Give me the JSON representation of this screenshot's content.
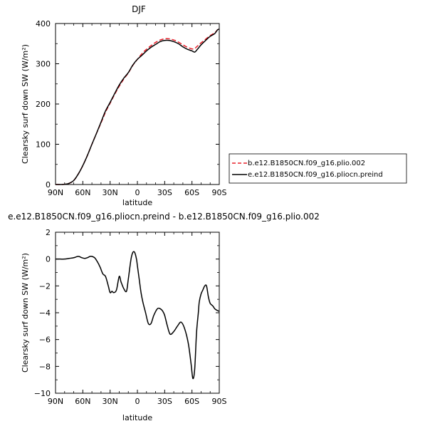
{
  "chart_data": [
    {
      "type": "line",
      "title": "DJF",
      "xlabel": "latitude",
      "ylabel": "Clearsky surf down SW (W/m²)",
      "xlim": [
        90,
        -90
      ],
      "ylim": [
        0,
        400
      ],
      "xticks": [
        90,
        60,
        30,
        0,
        -30,
        -60,
        -90
      ],
      "xticklabels": [
        "90N",
        "60N",
        "30N",
        "0",
        "30S",
        "60S",
        "90S"
      ],
      "yticks": [
        0,
        100,
        200,
        300,
        400
      ],
      "yticklabels": [
        "0",
        "100",
        "200",
        "300",
        "400"
      ],
      "legend_position": "right",
      "series": [
        {
          "name": "b.e12.B1850CN.f09_g16.plio.002",
          "color": "#e8202a",
          "dash": "dashed",
          "x": [
            90,
            85,
            80,
            75,
            70,
            65,
            60,
            55,
            50,
            45,
            40,
            35,
            30,
            25,
            20,
            15,
            10,
            5,
            0,
            -5,
            -10,
            -15,
            -20,
            -25,
            -30,
            -35,
            -40,
            -45,
            -50,
            -55,
            -60,
            -63,
            -66,
            -70,
            -75,
            -80,
            -85,
            -88,
            -90
          ],
          "y": [
            0,
            0,
            0.5,
            3,
            10,
            26,
            47,
            72,
            100,
            127,
            153,
            180,
            202,
            224,
            244,
            262,
            277,
            296,
            311,
            325,
            336,
            345,
            353,
            359,
            362,
            362,
            359,
            354,
            347,
            341,
            337,
            338,
            344,
            352,
            361,
            370,
            377,
            384,
            387
          ]
        },
        {
          "name": "e.e12.B1850CN.f09_g16.pliocn.preind",
          "color": "#000000",
          "dash": "solid",
          "x": [
            90,
            85,
            80,
            75,
            70,
            65,
            60,
            55,
            50,
            45,
            40,
            35,
            30,
            25,
            20,
            15,
            10,
            5,
            0,
            -5,
            -10,
            -15,
            -20,
            -25,
            -30,
            -35,
            -40,
            -45,
            -50,
            -55,
            -60,
            -63,
            -66,
            -70,
            -75,
            -80,
            -85,
            -88,
            -90
          ],
          "y": [
            0,
            0,
            0.5,
            3,
            10,
            26,
            47,
            72,
            100,
            127,
            155,
            183,
            204,
            226,
            247,
            264,
            278,
            297,
            311,
            321,
            332,
            341,
            348,
            355,
            358,
            358,
            355,
            350,
            342,
            336,
            332,
            329,
            336,
            347,
            358,
            368,
            375,
            384,
            386
          ]
        }
      ]
    },
    {
      "type": "line",
      "title": "e.e12.B1850CN.f09_g16.pliocn.preind - b.e12.B1850CN.f09_g16.plio.002",
      "xlabel": "latitude",
      "ylabel": "Clearsky surf down SW (W/m²)",
      "xlim": [
        90,
        -90
      ],
      "ylim": [
        -10,
        2
      ],
      "xticks": [
        90,
        60,
        30,
        0,
        -30,
        -60,
        -90
      ],
      "xticklabels": [
        "90N",
        "60N",
        "30N",
        "0",
        "30S",
        "60S",
        "90S"
      ],
      "yticks": [
        2,
        0,
        -2,
        -4,
        -6,
        -8,
        -10
      ],
      "yticklabels": [
        "2",
        "0",
        "−2",
        "−4",
        "−6",
        "−8",
        "−10"
      ],
      "series": [
        {
          "name": "",
          "color": "#000000",
          "dash": "solid",
          "x": [
            90,
            85,
            80,
            75,
            70,
            65,
            61,
            58,
            55,
            52,
            50,
            47,
            44,
            41,
            38,
            35,
            32,
            30,
            28,
            26,
            23,
            20,
            18,
            15,
            12,
            10,
            7,
            5,
            3,
            1,
            0,
            -2,
            -4,
            -6,
            -9,
            -12,
            -15,
            -18,
            -22,
            -25,
            -28,
            -30,
            -33,
            -36,
            -40,
            -44,
            -48,
            -52,
            -56,
            -59,
            -61,
            -63,
            -65,
            -67,
            -68,
            -70,
            -72,
            -74,
            -76,
            -78,
            -80,
            -83,
            -85,
            -87,
            -90
          ],
          "y": [
            0,
            0,
            0,
            0.05,
            0.1,
            0.2,
            0.1,
            0.05,
            0.1,
            0.2,
            0.2,
            0.1,
            -0.2,
            -0.6,
            -1.1,
            -1.3,
            -2.0,
            -2.5,
            -2.4,
            -2.5,
            -2.3,
            -1.3,
            -1.7,
            -2.2,
            -2.4,
            -1.5,
            0,
            0.5,
            0.5,
            0,
            -0.5,
            -1.5,
            -2.5,
            -3.2,
            -4.0,
            -4.8,
            -4.8,
            -4.2,
            -3.7,
            -3.7,
            -3.9,
            -4.2,
            -5.0,
            -5.6,
            -5.4,
            -5.0,
            -4.7,
            -5.2,
            -6.3,
            -7.8,
            -8.9,
            -8.2,
            -5.5,
            -4.0,
            -3.2,
            -2.6,
            -2.3,
            -2.0,
            -2.0,
            -2.8,
            -3.3,
            -3.5,
            -3.7,
            -3.8,
            -3.9
          ]
        }
      ]
    }
  ]
}
